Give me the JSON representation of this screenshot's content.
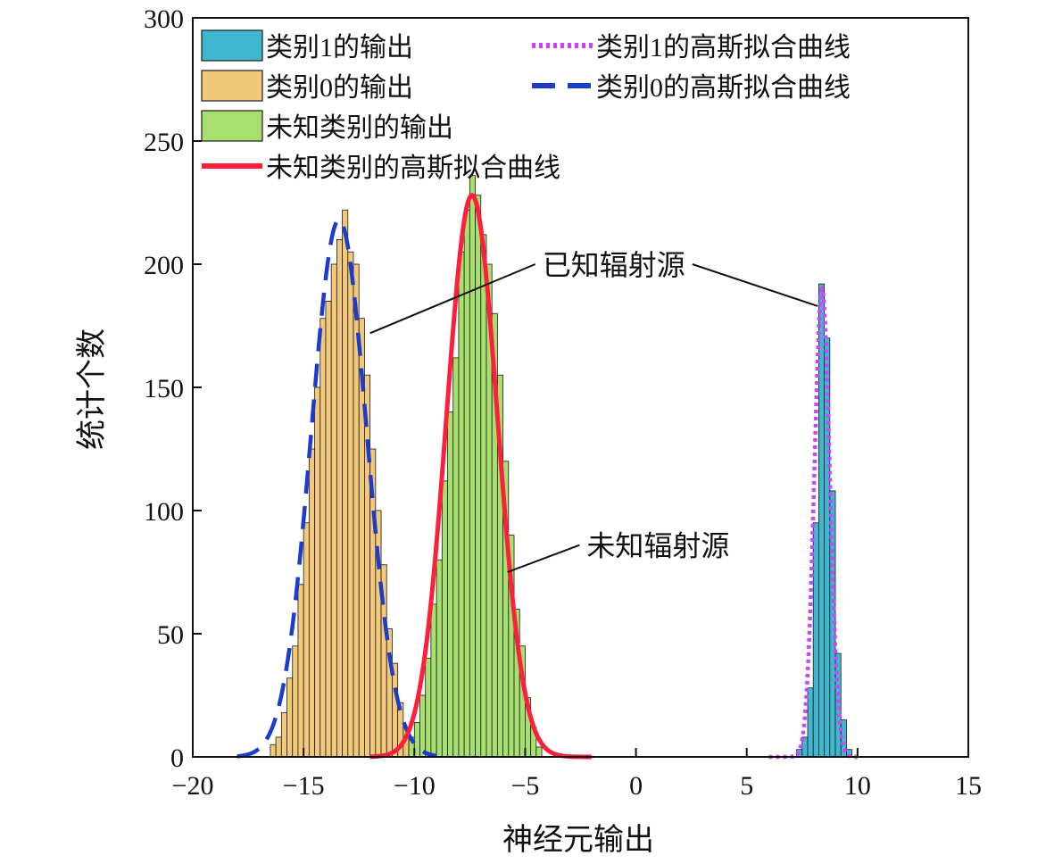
{
  "chart_data": {
    "type": "histogram",
    "title": "",
    "xlabel": "神经元输出",
    "ylabel": "统计个数",
    "xlim": [
      -20,
      15
    ],
    "ylim": [
      0,
      300
    ],
    "xticks": [
      -20,
      -15,
      -10,
      -5,
      0,
      5,
      10,
      15
    ],
    "yticks": [
      0,
      50,
      100,
      150,
      200,
      250,
      300
    ],
    "xtick_labels": [
      "−20",
      "−15",
      "−10",
      "−5",
      "0",
      "5",
      "10",
      "15"
    ],
    "ytick_labels": [
      "0",
      "50",
      "100",
      "150",
      "200",
      "250",
      "300"
    ],
    "grid": false,
    "legend_position": "top-left",
    "bin_width": 0.25,
    "series": [
      {
        "name": "类别1的输出",
        "kind": "histogram",
        "color": "#3fb8cf",
        "bins": [
          [
            7.25,
            3
          ],
          [
            7.5,
            8
          ],
          [
            7.75,
            28
          ],
          [
            8.0,
            95
          ],
          [
            8.25,
            192
          ],
          [
            8.5,
            170
          ],
          [
            8.75,
            108
          ],
          [
            9.0,
            42
          ],
          [
            9.25,
            15
          ],
          [
            9.5,
            3
          ]
        ]
      },
      {
        "name": "类别0的输出",
        "kind": "histogram",
        "color": "#f2c97a",
        "bins": [
          [
            -16.5,
            5
          ],
          [
            -16.25,
            8
          ],
          [
            -16.0,
            18
          ],
          [
            -15.75,
            32
          ],
          [
            -15.5,
            45
          ],
          [
            -15.25,
            70
          ],
          [
            -15.0,
            95
          ],
          [
            -14.75,
            125
          ],
          [
            -14.5,
            150
          ],
          [
            -14.25,
            178
          ],
          [
            -14.0,
            185
          ],
          [
            -13.75,
            200
          ],
          [
            -13.5,
            210
          ],
          [
            -13.25,
            222
          ],
          [
            -13.0,
            205
          ],
          [
            -12.75,
            200
          ],
          [
            -12.5,
            178
          ],
          [
            -12.25,
            155
          ],
          [
            -12.0,
            125
          ],
          [
            -11.75,
            100
          ],
          [
            -11.5,
            78
          ],
          [
            -11.25,
            52
          ],
          [
            -11.0,
            38
          ],
          [
            -10.75,
            22
          ],
          [
            -10.5,
            12
          ],
          [
            -10.25,
            6
          ]
        ]
      },
      {
        "name": "未知类别的输出",
        "kind": "histogram",
        "color": "#a8e070",
        "bins": [
          [
            -10.25,
            8
          ],
          [
            -10.0,
            14
          ],
          [
            -9.75,
            25
          ],
          [
            -9.5,
            40
          ],
          [
            -9.25,
            62
          ],
          [
            -9.0,
            80
          ],
          [
            -8.75,
            112
          ],
          [
            -8.5,
            140
          ],
          [
            -8.25,
            162
          ],
          [
            -8.0,
            205
          ],
          [
            -7.75,
            222
          ],
          [
            -7.5,
            236
          ],
          [
            -7.25,
            228
          ],
          [
            -7.0,
            212
          ],
          [
            -6.75,
            200
          ],
          [
            -6.5,
            180
          ],
          [
            -6.25,
            155
          ],
          [
            -6.0,
            120
          ],
          [
            -5.75,
            90
          ],
          [
            -5.5,
            60
          ],
          [
            -5.25,
            45
          ],
          [
            -5.0,
            24
          ],
          [
            -4.75,
            12
          ],
          [
            -4.5,
            4
          ]
        ]
      },
      {
        "name": "类别1的高斯拟合曲线",
        "kind": "gaussian",
        "color": "#cc44ff",
        "dash": "4,4",
        "peak": 190,
        "mean": 8.4,
        "sigma": 0.35,
        "range": [
          6.0,
          10.0
        ]
      },
      {
        "name": "类别0的高斯拟合曲线",
        "kind": "gaussian",
        "color": "#1e3ccc",
        "dash": "26,14",
        "peak": 218,
        "mean": -13.4,
        "sigma": 1.25,
        "range": [
          -18.0,
          -9.0
        ]
      },
      {
        "name": "未知类别的高斯拟合曲线",
        "kind": "gaussian",
        "color": "#ff1f3d",
        "dash": "",
        "peak": 228,
        "mean": -7.4,
        "sigma": 1.15,
        "range": [
          -12.0,
          -2.0
        ]
      }
    ],
    "annotations": [
      {
        "text": "已知辐射源",
        "x": -1.0,
        "y": 200,
        "targets": [
          [
            -12.0,
            172
          ],
          [
            8.2,
            183
          ]
        ]
      },
      {
        "text": "未知辐射源",
        "x": 1.0,
        "y": 86,
        "targets": [
          [
            -5.8,
            75
          ]
        ]
      }
    ]
  }
}
